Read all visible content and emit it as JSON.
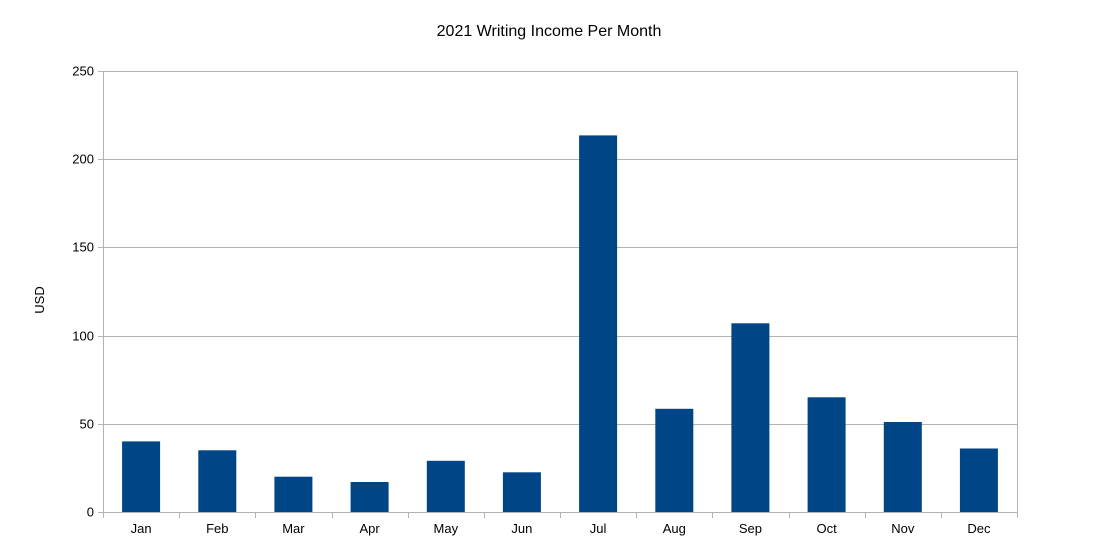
{
  "chart_data": {
    "type": "bar",
    "title": "2021 Writing Income Per Month",
    "xlabel": "",
    "ylabel": "USD",
    "categories": [
      "Jan",
      "Feb",
      "Mar",
      "Apr",
      "May",
      "Jun",
      "Jul",
      "Aug",
      "Sep",
      "Oct",
      "Nov",
      "Dec"
    ],
    "values": [
      40,
      35,
      20,
      17,
      29,
      22.5,
      213.5,
      58.5,
      107,
      65,
      51,
      36
    ],
    "ylim": [
      0,
      250
    ],
    "yticks": [
      0,
      50,
      100,
      150,
      200,
      250
    ],
    "grid": true,
    "legend": "none",
    "bar_color": "#004586",
    "grid_color": "#b3b3b3"
  }
}
